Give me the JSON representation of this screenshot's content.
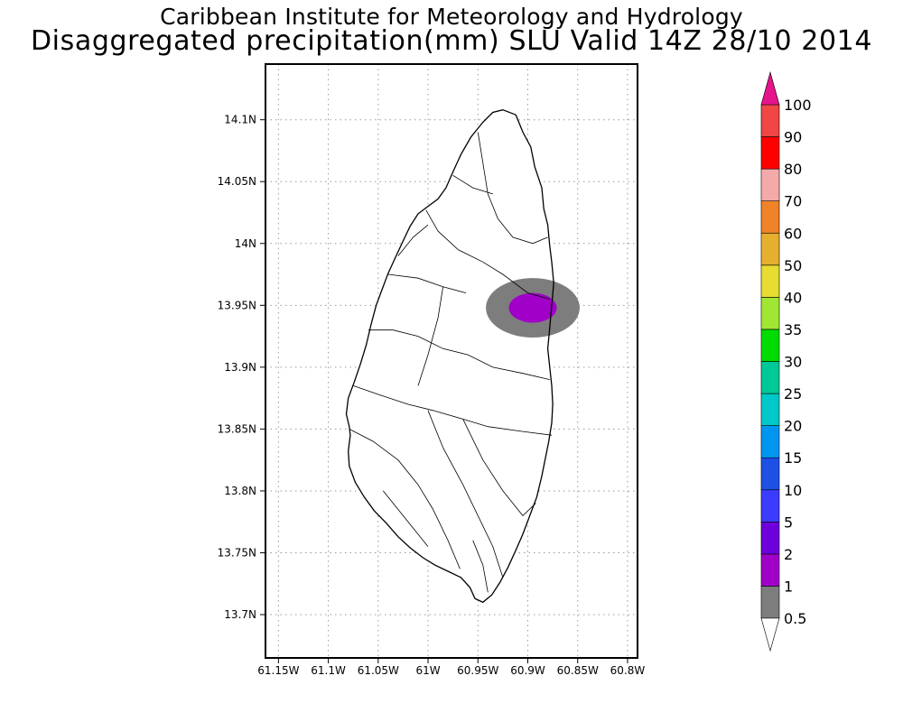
{
  "header": {
    "title_line1": "Caribbean Institute for Meteorology and Hydrology",
    "title_line2": "Disaggregated precipitation(mm) SLU Valid 14Z 28/10 2014"
  },
  "map": {
    "region": "SLU",
    "lon_range": [
      -61.163,
      -60.79
    ],
    "lat_range": [
      13.665,
      14.145
    ],
    "lat_ticks": [
      {
        "value": 14.1,
        "label": "14.1N"
      },
      {
        "value": 14.05,
        "label": "14.05N"
      },
      {
        "value": 14.0,
        "label": "14N"
      },
      {
        "value": 13.95,
        "label": "13.95N"
      },
      {
        "value": 13.9,
        "label": "13.9N"
      },
      {
        "value": 13.85,
        "label": "13.85N"
      },
      {
        "value": 13.8,
        "label": "13.8N"
      },
      {
        "value": 13.75,
        "label": "13.75N"
      },
      {
        "value": 13.7,
        "label": "13.7N"
      }
    ],
    "lon_ticks": [
      {
        "value": -61.15,
        "label": "61.15W"
      },
      {
        "value": -61.1,
        "label": "61.1W"
      },
      {
        "value": -61.05,
        "label": "61.05W"
      },
      {
        "value": -61.0,
        "label": "61W"
      },
      {
        "value": -60.95,
        "label": "60.95W"
      },
      {
        "value": -60.9,
        "label": "60.9W"
      },
      {
        "value": -60.85,
        "label": "60.85W"
      },
      {
        "value": -60.8,
        "label": "60.8W"
      }
    ],
    "grid": "dotted",
    "coastline": [
      [
        -60.925,
        14.108
      ],
      [
        -60.912,
        14.104
      ],
      [
        -60.905,
        14.09
      ],
      [
        -60.897,
        14.078
      ],
      [
        -60.893,
        14.062
      ],
      [
        -60.886,
        14.045
      ],
      [
        -60.884,
        14.028
      ],
      [
        -60.88,
        14.015
      ],
      [
        -60.878,
        13.998
      ],
      [
        -60.876,
        13.985
      ],
      [
        -60.874,
        13.968
      ],
      [
        -60.876,
        13.95
      ],
      [
        -60.878,
        13.932
      ],
      [
        -60.88,
        13.915
      ],
      [
        -60.878,
        13.9
      ],
      [
        -60.876,
        13.885
      ],
      [
        -60.875,
        13.87
      ],
      [
        -60.876,
        13.855
      ],
      [
        -60.879,
        13.84
      ],
      [
        -60.882,
        13.828
      ],
      [
        -60.886,
        13.812
      ],
      [
        -60.891,
        13.795
      ],
      [
        -60.898,
        13.78
      ],
      [
        -60.905,
        13.765
      ],
      [
        -60.912,
        13.752
      ],
      [
        -60.92,
        13.738
      ],
      [
        -60.928,
        13.726
      ],
      [
        -60.936,
        13.716
      ],
      [
        -60.945,
        13.71
      ],
      [
        -60.953,
        13.713
      ],
      [
        -60.958,
        13.722
      ],
      [
        -60.967,
        13.73
      ],
      [
        -60.98,
        13.735
      ],
      [
        -60.993,
        13.74
      ],
      [
        -61.005,
        13.746
      ],
      [
        -61.018,
        13.754
      ],
      [
        -61.03,
        13.763
      ],
      [
        -61.042,
        13.774
      ],
      [
        -61.054,
        13.784
      ],
      [
        -61.064,
        13.795
      ],
      [
        -61.073,
        13.807
      ],
      [
        -61.079,
        13.82
      ],
      [
        -61.08,
        13.832
      ],
      [
        -61.078,
        13.845
      ],
      [
        -61.079,
        13.852
      ],
      [
        -61.082,
        13.862
      ],
      [
        -61.08,
        13.875
      ],
      [
        -61.074,
        13.888
      ],
      [
        -61.068,
        13.902
      ],
      [
        -61.062,
        13.918
      ],
      [
        -61.057,
        13.935
      ],
      [
        -61.052,
        13.95
      ],
      [
        -61.046,
        13.963
      ],
      [
        -61.04,
        13.976
      ],
      [
        -61.032,
        13.99
      ],
      [
        -61.025,
        14.002
      ],
      [
        -61.018,
        14.014
      ],
      [
        -61.01,
        14.024
      ],
      [
        -61.0,
        14.03
      ],
      [
        -60.99,
        14.036
      ],
      [
        -60.982,
        14.045
      ],
      [
        -60.975,
        14.058
      ],
      [
        -60.967,
        14.072
      ],
      [
        -60.957,
        14.086
      ],
      [
        -60.945,
        14.098
      ],
      [
        -60.935,
        14.106
      ],
      [
        -60.925,
        14.108
      ]
    ],
    "rivers": [
      [
        [
          -61.002,
          14.027
        ],
        [
          -60.99,
          14.01
        ],
        [
          -60.97,
          13.995
        ],
        [
          -60.945,
          13.985
        ],
        [
          -60.925,
          13.975
        ],
        [
          -60.9,
          13.96
        ],
        [
          -60.878,
          13.955
        ]
      ],
      [
        [
          -61.04,
          13.975
        ],
        [
          -61.01,
          13.972
        ],
        [
          -60.985,
          13.965
        ],
        [
          -60.962,
          13.96
        ]
      ],
      [
        [
          -61.06,
          13.93
        ],
        [
          -61.035,
          13.93
        ],
        [
          -61.01,
          13.925
        ],
        [
          -60.985,
          13.915
        ],
        [
          -60.96,
          13.91
        ],
        [
          -60.935,
          13.9
        ],
        [
          -60.905,
          13.895
        ],
        [
          -60.878,
          13.89
        ]
      ],
      [
        [
          -61.075,
          13.885
        ],
        [
          -61.05,
          13.878
        ],
        [
          -61.02,
          13.87
        ],
        [
          -60.995,
          13.865
        ],
        [
          -60.965,
          13.858
        ],
        [
          -60.94,
          13.852
        ],
        [
          -60.905,
          13.848
        ],
        [
          -60.876,
          13.845
        ]
      ],
      [
        [
          -61.079,
          13.85
        ],
        [
          -61.055,
          13.84
        ],
        [
          -61.03,
          13.825
        ],
        [
          -61.01,
          13.805
        ],
        [
          -60.995,
          13.785
        ],
        [
          -60.98,
          13.76
        ],
        [
          -60.968,
          13.737
        ]
      ],
      [
        [
          -61.0,
          13.865
        ],
        [
          -60.985,
          13.835
        ],
        [
          -60.965,
          13.805
        ],
        [
          -60.95,
          13.78
        ],
        [
          -60.935,
          13.755
        ],
        [
          -60.925,
          13.73
        ]
      ],
      [
        [
          -60.965,
          13.858
        ],
        [
          -60.945,
          13.825
        ],
        [
          -60.925,
          13.8
        ],
        [
          -60.905,
          13.78
        ],
        [
          -60.892,
          13.79
        ]
      ],
      [
        [
          -60.985,
          13.965
        ],
        [
          -60.99,
          13.94
        ],
        [
          -61.0,
          13.91
        ],
        [
          -61.01,
          13.885
        ]
      ],
      [
        [
          -61.045,
          13.8
        ],
        [
          -61.03,
          13.785
        ],
        [
          -61.015,
          13.77
        ],
        [
          -61.0,
          13.755
        ]
      ],
      [
        [
          -60.95,
          14.09
        ],
        [
          -60.945,
          14.065
        ],
        [
          -60.94,
          14.04
        ],
        [
          -60.93,
          14.02
        ],
        [
          -60.915,
          14.005
        ],
        [
          -60.895,
          14.0
        ],
        [
          -60.88,
          14.005
        ]
      ],
      [
        [
          -60.975,
          14.055
        ],
        [
          -60.955,
          14.045
        ],
        [
          -60.935,
          14.04
        ]
      ],
      [
        [
          -61.03,
          13.99
        ],
        [
          -61.015,
          14.005
        ],
        [
          -61.0,
          14.015
        ]
      ],
      [
        [
          -60.955,
          13.76
        ],
        [
          -60.945,
          13.74
        ],
        [
          -60.94,
          13.718
        ]
      ]
    ]
  },
  "precip_field": {
    "center_lon": -60.895,
    "center_lat": 13.948,
    "contours": [
      {
        "threshold_mm": 0.5,
        "color": "#7d7d7d",
        "rx_deg": 0.047,
        "ry_deg": 0.024
      },
      {
        "threshold_mm": 1,
        "color": "#a000c8",
        "rx_deg": 0.024,
        "ry_deg": 0.012
      }
    ]
  },
  "colorbar": {
    "levels": [
      "0.5",
      "1",
      "2",
      "5",
      "10",
      "15",
      "20",
      "25",
      "30",
      "35",
      "40",
      "50",
      "60",
      "70",
      "80",
      "90",
      "100"
    ],
    "colors": [
      "#7d7d7d",
      "#a000c8",
      "#6e00dc",
      "#3c3cff",
      "#1e50e6",
      "#0096f0",
      "#00c8c8",
      "#00c896",
      "#00dc00",
      "#a0e632",
      "#e6dc32",
      "#e6af2d",
      "#f08228",
      "#f5aaaa",
      "#ff0000",
      "#f04646",
      "#e6148c"
    ],
    "under_color": "#ffffff",
    "over_color": "#e6148c"
  }
}
